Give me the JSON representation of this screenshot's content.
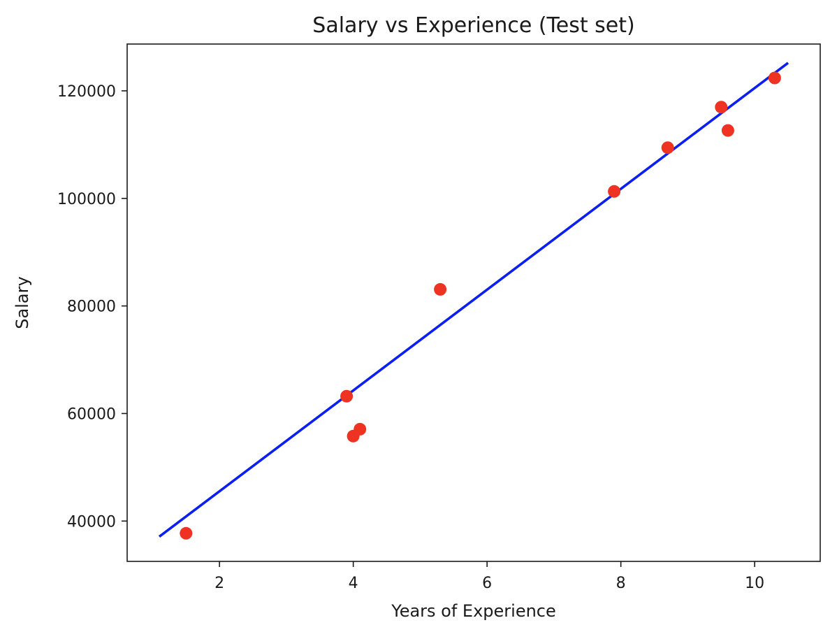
{
  "chart_data": {
    "type": "scatter",
    "title": "Salary vs Experience (Test set)",
    "xlabel": "Years of Experience",
    "ylabel": "Salary",
    "xlim": [
      0.62,
      10.98
    ],
    "ylim": [
      32500,
      128700
    ],
    "x_ticks": [
      2,
      4,
      6,
      8,
      10
    ],
    "y_ticks": [
      40000,
      60000,
      80000,
      100000,
      120000
    ],
    "x_tick_labels": [
      "2",
      "4",
      "6",
      "8",
      "10"
    ],
    "y_tick_labels": [
      "40000",
      "60000",
      "80000",
      "100000",
      "120000"
    ],
    "grid": false,
    "series": [
      {
        "type": "scatter",
        "color": "#ee3322",
        "x": [
          1.5,
          3.9,
          4.0,
          4.1,
          5.3,
          7.9,
          8.7,
          9.5,
          9.6,
          10.3
        ],
        "y": [
          37731,
          63218,
          55794,
          57081,
          83088,
          101302,
          109431,
          116969,
          112635,
          122391
        ]
      },
      {
        "type": "line",
        "color": "#0a1ff0",
        "x": [
          1.1,
          10.5
        ],
        "y": [
          37100,
          125200
        ]
      }
    ]
  }
}
